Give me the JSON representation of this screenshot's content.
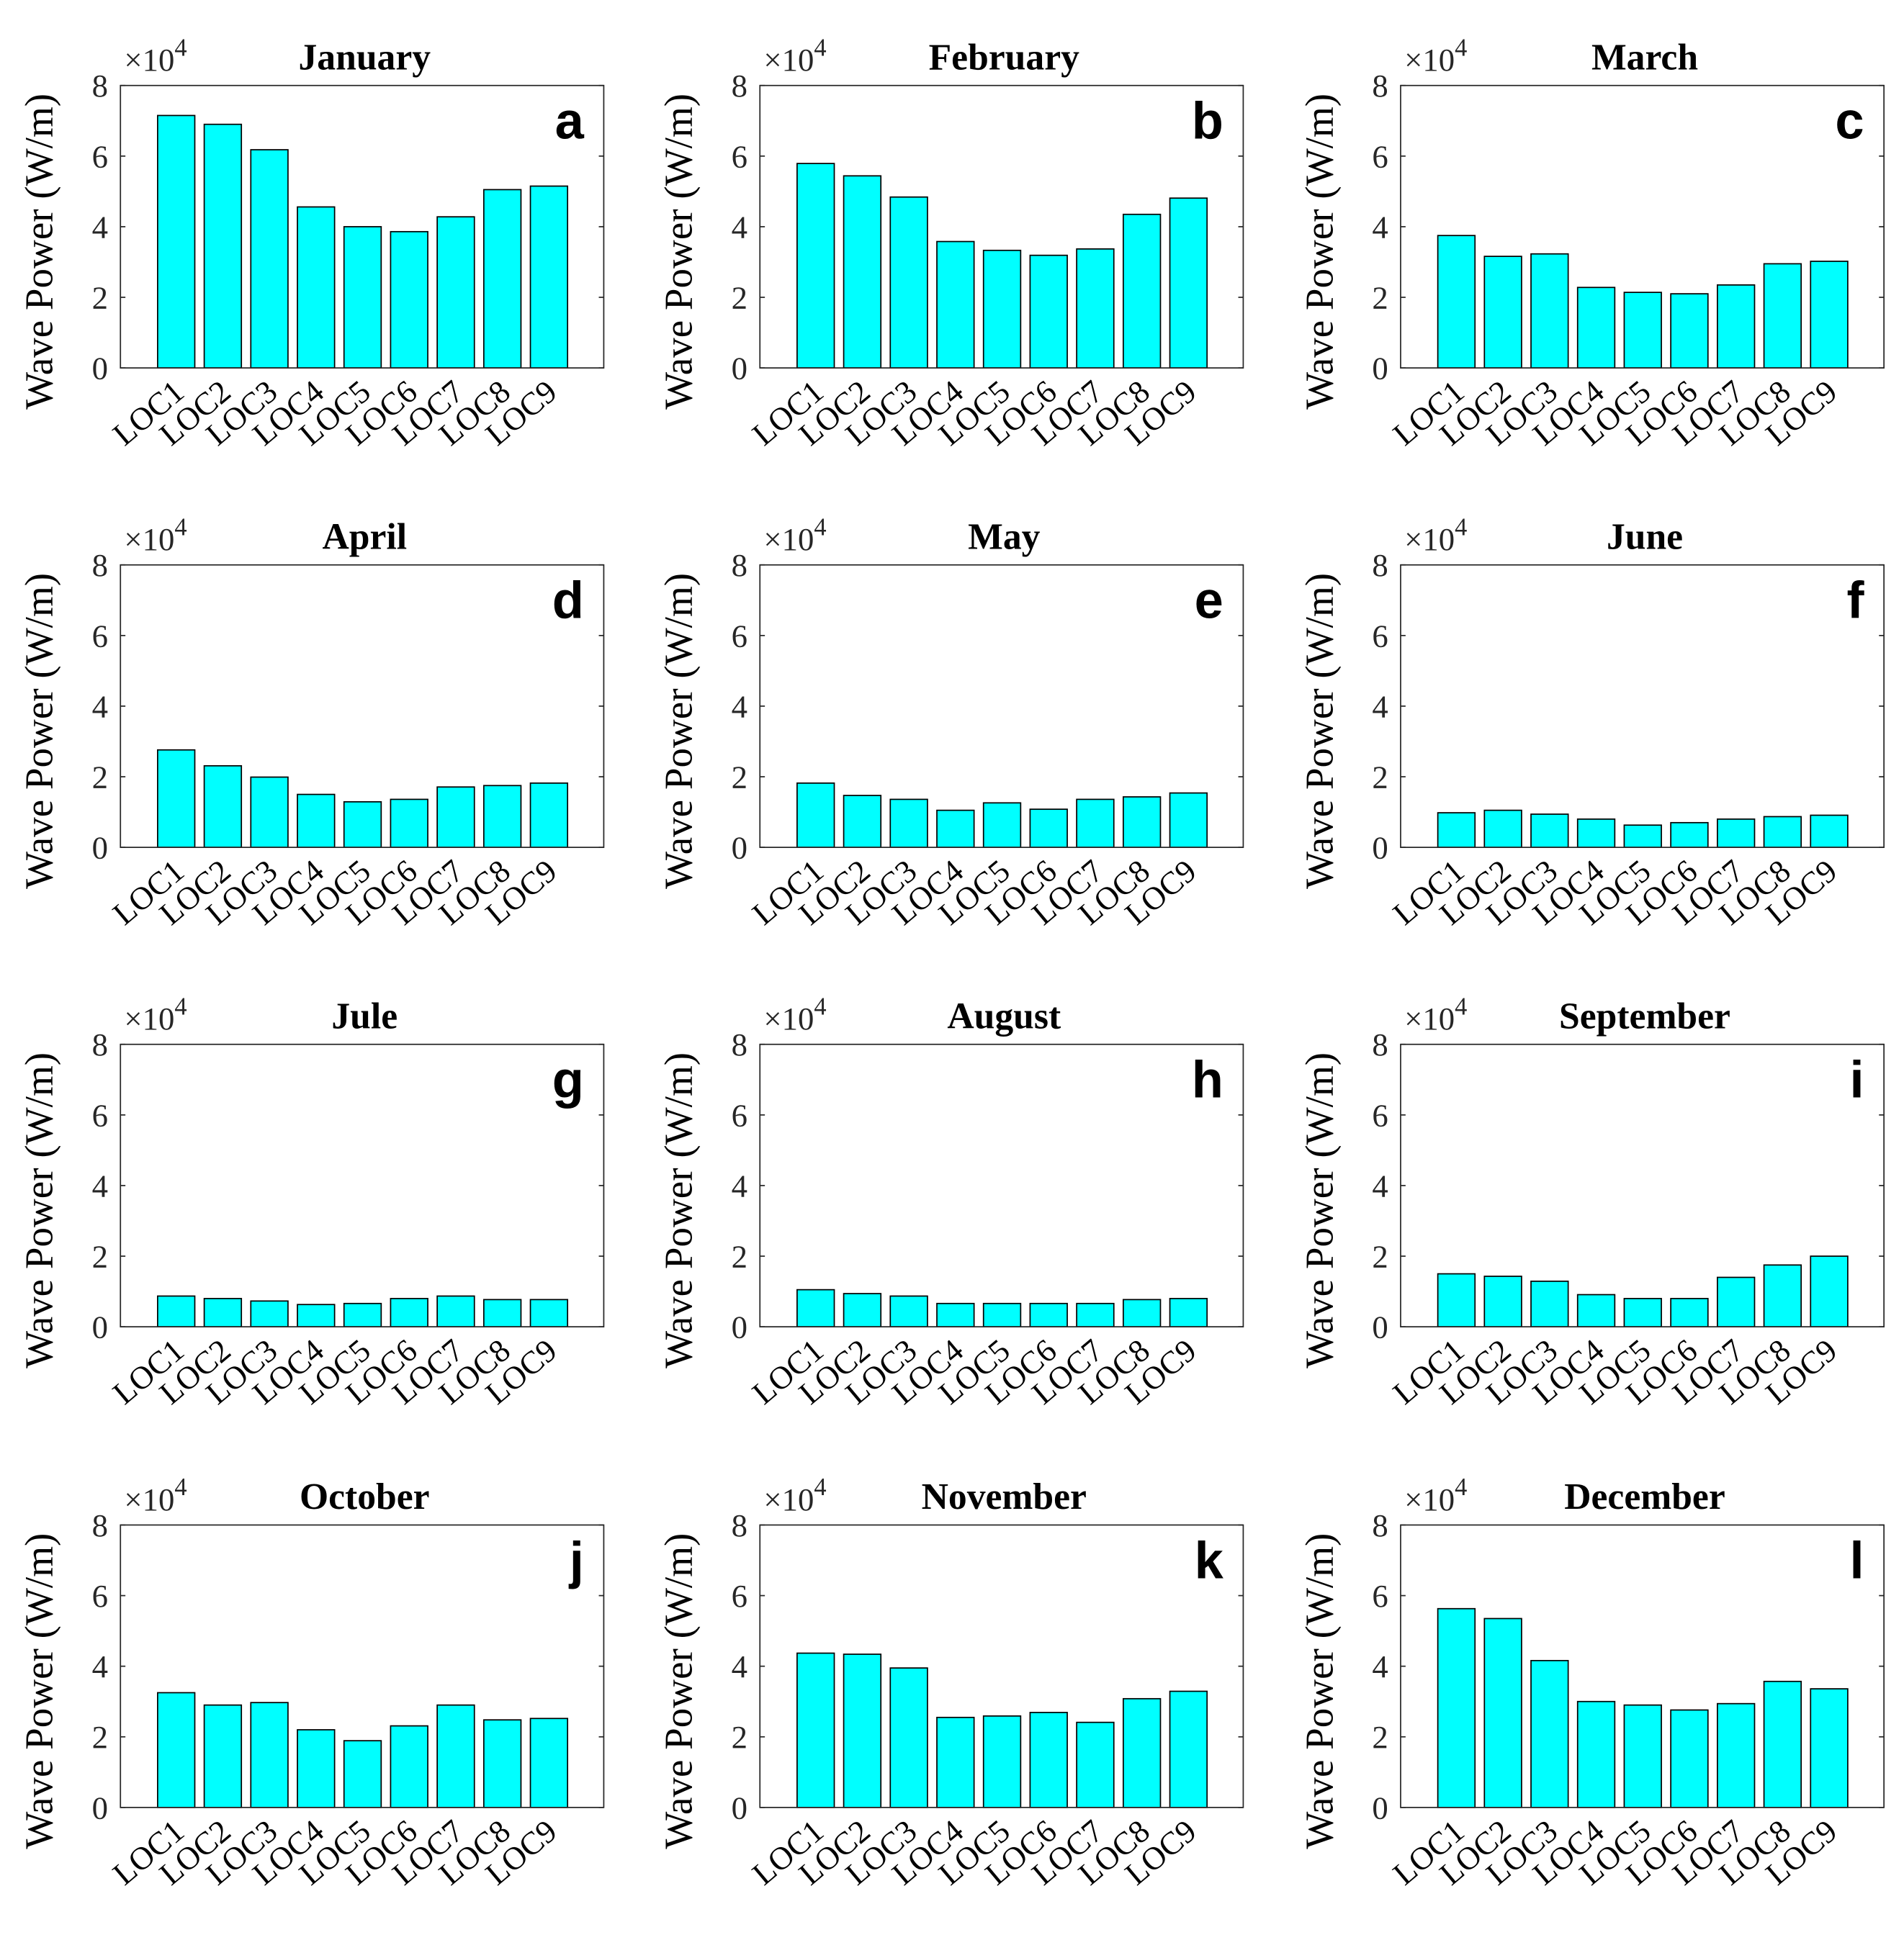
{
  "chart_data": {
    "type": "bar",
    "ylabel": "Wave Power (W/m)",
    "multiplier": "×10",
    "multiplier_exp": "4",
    "ylim": [
      0,
      8
    ],
    "yticks": [
      "0",
      "2",
      "4",
      "6",
      "8"
    ],
    "categories": [
      "LOC1",
      "LOC2",
      "LOC3",
      "LOC4",
      "LOC5",
      "LOC6",
      "LOC7",
      "LOC8",
      "LOC9"
    ],
    "bar_color": "#00FFFF",
    "edge_color": "#000000",
    "panels": [
      {
        "title": "January",
        "letter": "a",
        "values": [
          7.15,
          6.9,
          6.18,
          4.56,
          4.0,
          3.86,
          4.28,
          5.05,
          5.15
        ]
      },
      {
        "title": "February",
        "letter": "b",
        "values": [
          5.79,
          5.44,
          4.84,
          3.58,
          3.33,
          3.19,
          3.37,
          4.35,
          4.81
        ]
      },
      {
        "title": "March",
        "letter": "c",
        "values": [
          3.75,
          3.16,
          3.23,
          2.28,
          2.14,
          2.1,
          2.35,
          2.95,
          3.02
        ]
      },
      {
        "title": "April",
        "letter": "d",
        "values": [
          2.76,
          2.31,
          1.99,
          1.5,
          1.29,
          1.36,
          1.71,
          1.75,
          1.82
        ]
      },
      {
        "title": "May",
        "letter": "e",
        "values": [
          1.82,
          1.47,
          1.36,
          1.05,
          1.26,
          1.08,
          1.36,
          1.43,
          1.54
        ]
      },
      {
        "title": "June",
        "letter": "f",
        "values": [
          0.98,
          1.05,
          0.94,
          0.8,
          0.63,
          0.7,
          0.8,
          0.87,
          0.91
        ]
      },
      {
        "title": "Jule",
        "letter": "g",
        "values": [
          0.87,
          0.8,
          0.73,
          0.63,
          0.66,
          0.8,
          0.87,
          0.77,
          0.77
        ]
      },
      {
        "title": "August",
        "letter": "h",
        "values": [
          1.05,
          0.94,
          0.87,
          0.66,
          0.66,
          0.66,
          0.66,
          0.77,
          0.8
        ]
      },
      {
        "title": "September",
        "letter": "i",
        "values": [
          1.5,
          1.43,
          1.29,
          0.91,
          0.8,
          0.8,
          1.4,
          1.75,
          2.0
        ]
      },
      {
        "title": "October",
        "letter": "j",
        "values": [
          3.25,
          2.9,
          2.97,
          2.2,
          1.89,
          2.31,
          2.9,
          2.48,
          2.52
        ]
      },
      {
        "title": "November",
        "letter": "k",
        "values": [
          4.37,
          4.34,
          3.95,
          2.55,
          2.59,
          2.69,
          2.41,
          3.08,
          3.29
        ]
      },
      {
        "title": "December",
        "letter": "l",
        "values": [
          5.63,
          5.35,
          4.16,
          3.0,
          2.9,
          2.76,
          2.94,
          3.57,
          3.36
        ]
      }
    ]
  }
}
